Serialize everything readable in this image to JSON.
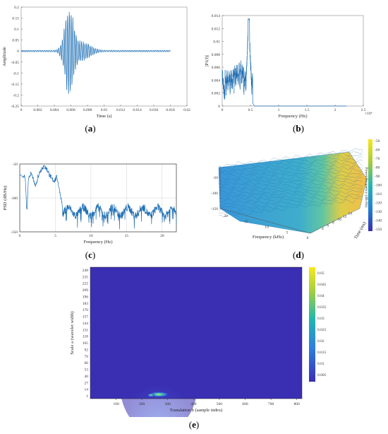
{
  "chart_data": [
    {
      "id": "a",
      "type": "line",
      "xlabel": "Time (s)",
      "ylabel": "Amplitude",
      "xlim": [
        0,
        0.02
      ],
      "ylim": [
        -0.25,
        0.2
      ],
      "xticks": [
        "0",
        "0.002",
        "0.004",
        "0.006",
        "0.008",
        "0.01",
        "0.012",
        "0.014",
        "0.016",
        "0.018",
        "0.02"
      ],
      "yticks": [
        "0.2",
        "0.15",
        "0.1",
        "0.05",
        "0",
        "-0.05",
        "-0.1",
        "-0.15",
        "-0.2",
        "-0.25"
      ],
      "color": "#1f6fb4",
      "envelope": {
        "center": 0.0058,
        "peak": 0.2,
        "trough": -0.22,
        "end": 0.018
      }
    },
    {
      "id": "b",
      "type": "line",
      "xlabel": "Frequency (Hz)",
      "ylabel": "|P1(f)|",
      "xlim": [
        0,
        2.5
      ],
      "ylim": [
        0,
        0.014
      ],
      "x_exponent": "×10⁴",
      "xticks": [
        "0",
        "0.5",
        "1",
        "1.5",
        "2",
        "2.5"
      ],
      "yticks": [
        "0.014",
        "0.012",
        "0.01",
        "0.008",
        "0.006",
        "0.004",
        "0.002",
        "0"
      ],
      "color": "#1f6fb4",
      "peak": {
        "x": 0.47,
        "y": 0.013
      }
    },
    {
      "id": "c",
      "type": "line",
      "xlabel": "Frequency (Hz)",
      "ylabel": "PSD (dB/Hz)",
      "xlim": [
        0,
        22
      ],
      "ylim": [
        -150,
        -50
      ],
      "xticks": [
        "0",
        "5",
        "10",
        "15",
        "20"
      ],
      "yticks": [
        "-50",
        "-100",
        "-150"
      ],
      "grid": true,
      "color": "#1f6fb4"
    },
    {
      "id": "d",
      "type": "surface",
      "xlabel": "Frequency (kHz)",
      "ylabel": "Time (ms)",
      "zlabel": "Power/frequency (dB/Hz)",
      "xticks": [
        "20",
        "15",
        "10",
        "5",
        "0"
      ],
      "yticks": [
        "4",
        "6",
        "8",
        "10",
        "12",
        "14"
      ],
      "zticks": [
        "-50",
        "-100",
        "-150"
      ],
      "colorbar_ticks": [
        "-50",
        "-60",
        "-70",
        "-80",
        "-90",
        "-100",
        "-110",
        "-120",
        "-130",
        "-140",
        "-150"
      ]
    },
    {
      "id": "e",
      "type": "heatmap",
      "xlabel": "Translation b (sample index)",
      "ylabel": "Scale a (wavelet width)",
      "xticks": [
        "100",
        "200",
        "300",
        "400",
        "500",
        "600",
        "700",
        "800"
      ],
      "yticks": [
        "248",
        "235",
        "222",
        "209",
        "196",
        "183",
        "170",
        "157",
        "144",
        "131",
        "118",
        "105",
        "92",
        "79",
        "66",
        "53",
        "40",
        "27",
        "14",
        "1"
      ],
      "colorbar_ticks": [
        "0.05",
        "0.045",
        "0.04",
        "0.035",
        "0.03",
        "0.025",
        "0.02",
        "0.015",
        "0.01",
        "0.005"
      ],
      "hotspot": {
        "x": 260,
        "scale": 8
      }
    }
  ],
  "captions": {
    "a": "(a)",
    "b": "(b)",
    "c": "(c)",
    "d": "(d)",
    "e": "(e)"
  },
  "colors": {
    "line": "#1f6fb4",
    "heat_bg": "#3a2fb3",
    "grid": "#d0d0d0"
  }
}
